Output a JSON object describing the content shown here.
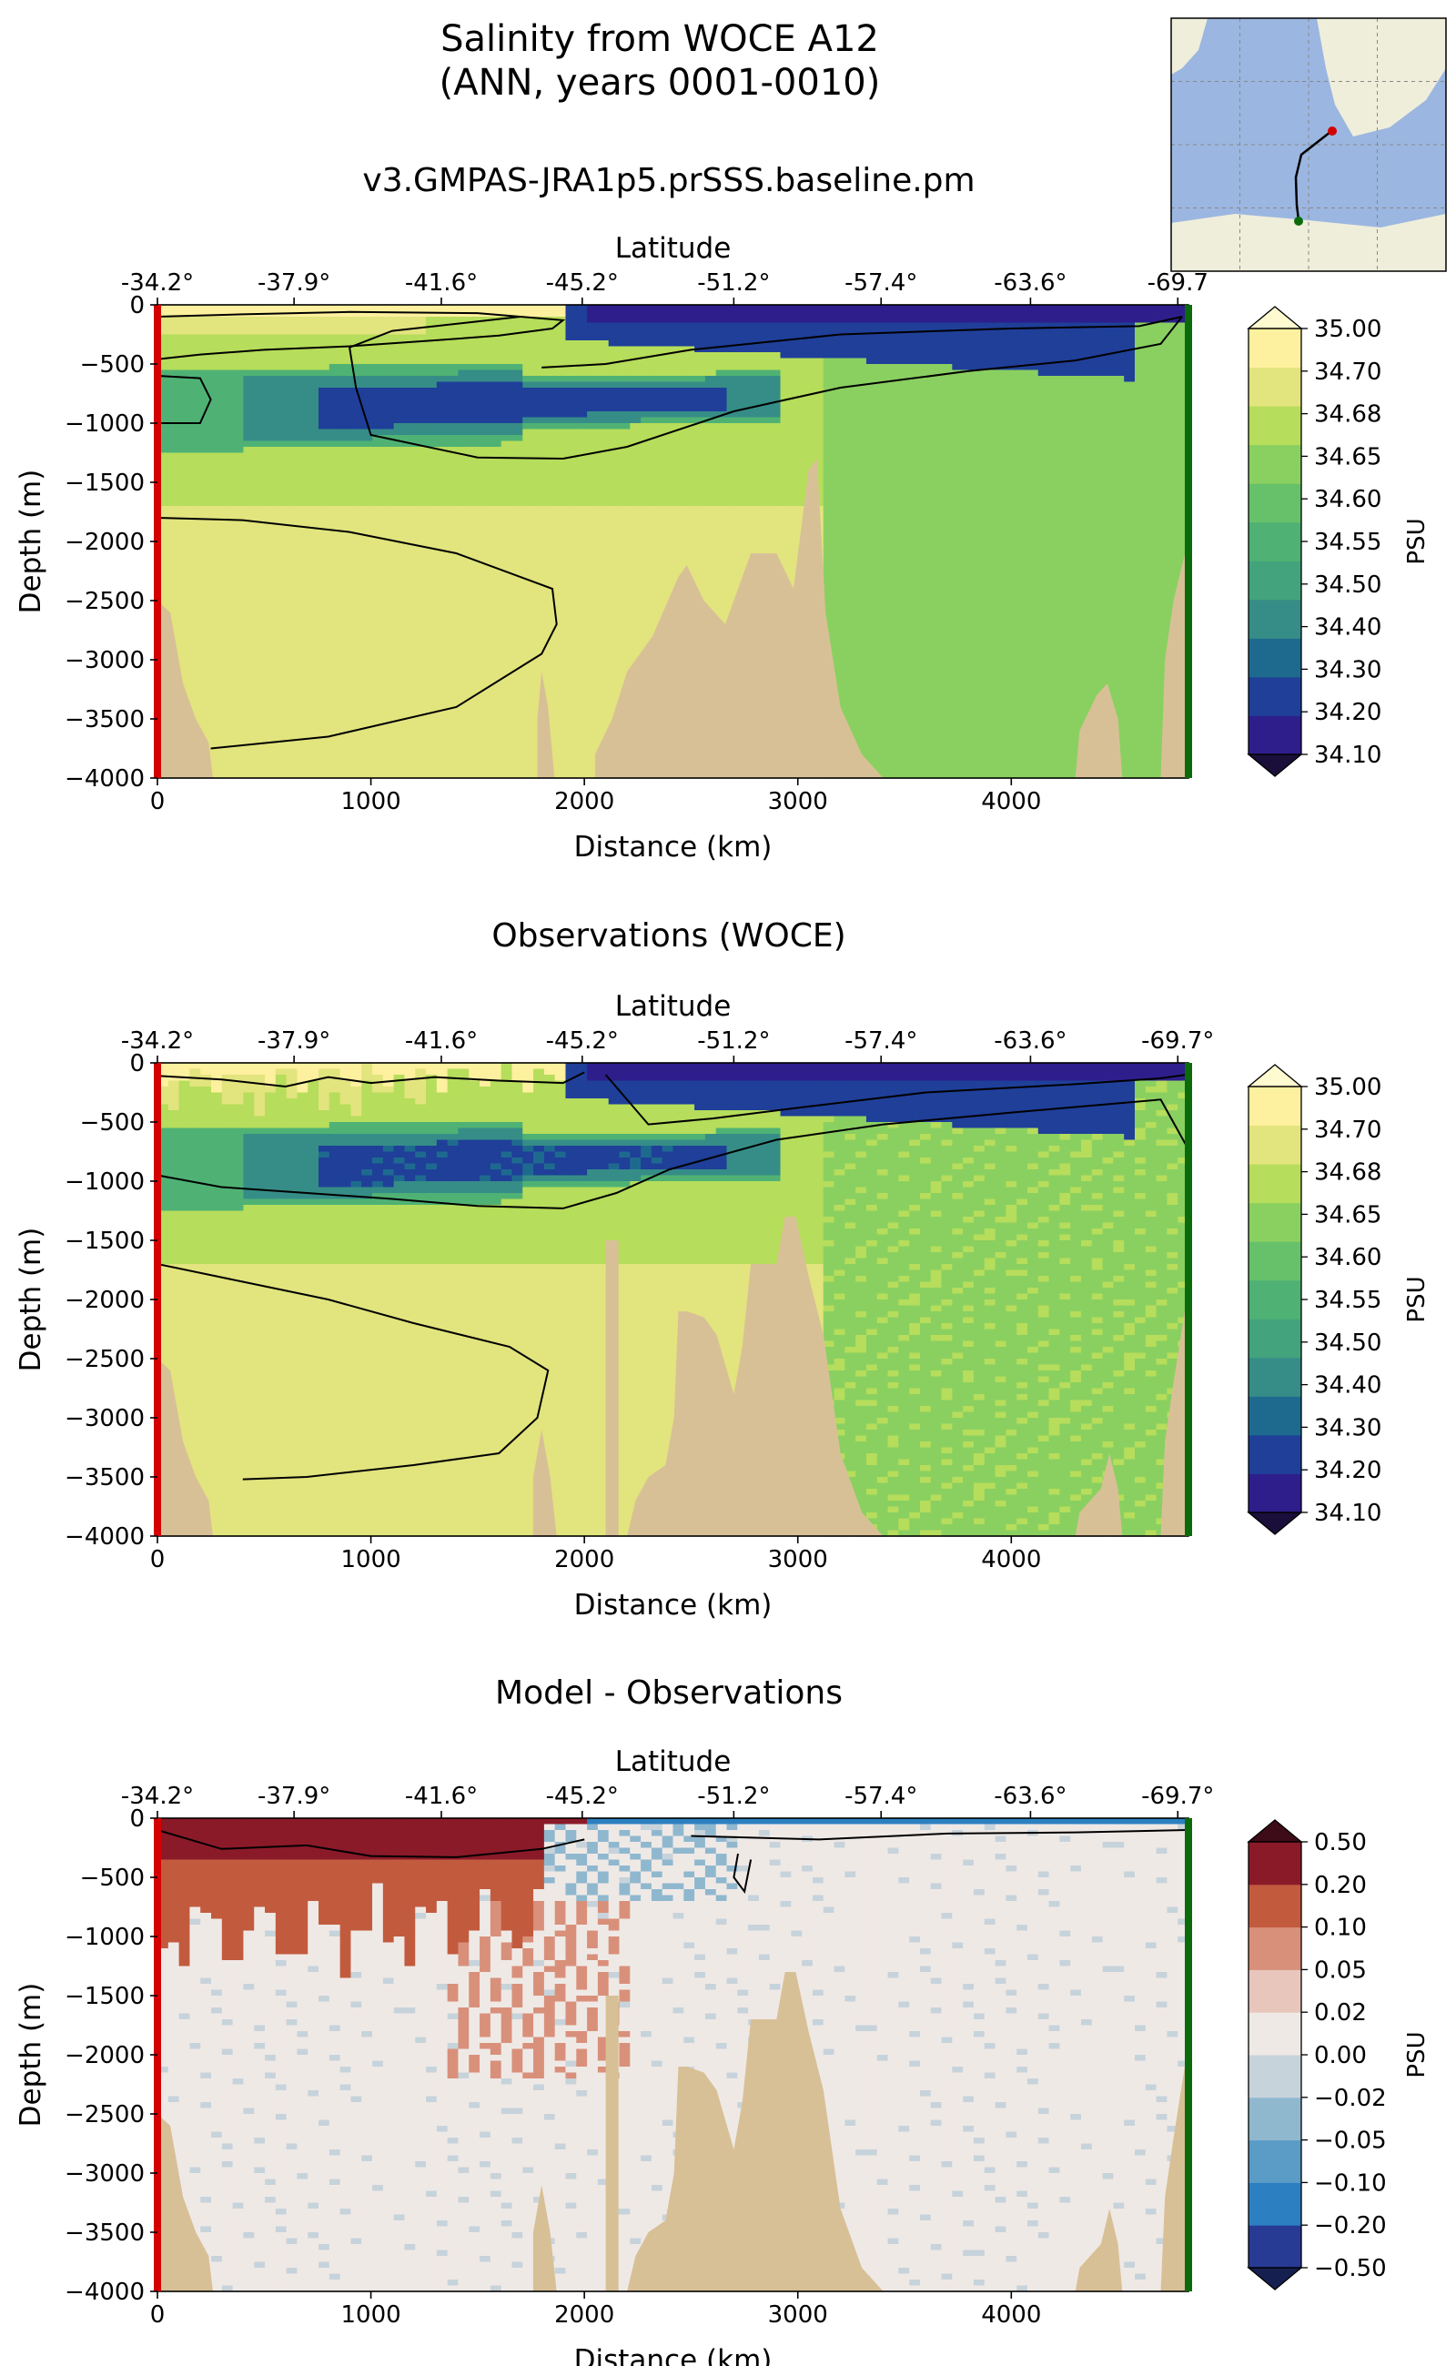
{
  "figure": {
    "title_line1": "Salinity from WOCE A12",
    "title_line2": "(ANN, years 0001-0010)",
    "colors": {
      "land": "#d8c096",
      "start_marker": "#d40000",
      "end_marker": "#0b6b0b",
      "contour": "#000000",
      "map_ocean": "#9bb6e0",
      "map_land": "#efeedb"
    }
  },
  "chart_data": [
    {
      "type": "heatmap",
      "title": "v3.GMPAS-JRA1p5.prSSS.baseline.pm",
      "xlabel": "Distance (km)",
      "ylabel": "Depth (m)",
      "top_xlabel": "Latitude",
      "xlim": [
        0,
        4830
      ],
      "ylim": [
        -4000,
        0
      ],
      "x_ticks": [
        "0",
        "1000",
        "2000",
        "3000",
        "4000"
      ],
      "y_ticks": [
        "0",
        "−500",
        "−1000",
        "−1500",
        "−2000",
        "−2500",
        "−3000",
        "−3500",
        "−4000"
      ],
      "top_ticks": [
        "-34.2°",
        "-37.9°",
        "-41.6°",
        "-45.2°",
        "-51.2°",
        "-57.4°",
        "-63.6°",
        "-69.7"
      ],
      "colorbar": {
        "label": "PSU",
        "extend": "both",
        "levels": [
          "34.10",
          "34.20",
          "34.30",
          "34.40",
          "34.50",
          "34.55",
          "34.60",
          "34.65",
          "34.68",
          "34.70",
          "35.00"
        ],
        "colors": [
          "#2e1e8c",
          "#1f3f99",
          "#1e6a8f",
          "#368d87",
          "#43a37c",
          "#4fb274",
          "#67c16b",
          "#8ad061",
          "#b6dd5b",
          "#e2e47e",
          "#fdf09e"
        ],
        "under_color": "#1a0f3a",
        "over_color": "#fffad0"
      }
    },
    {
      "type": "heatmap",
      "title": "Observations (WOCE)",
      "xlabel": "Distance (km)",
      "ylabel": "Depth (m)",
      "top_xlabel": "Latitude",
      "xlim": [
        0,
        4830
      ],
      "ylim": [
        -4000,
        0
      ],
      "x_ticks": [
        "0",
        "1000",
        "2000",
        "3000",
        "4000"
      ],
      "y_ticks": [
        "0",
        "−500",
        "−1000",
        "−1500",
        "−2000",
        "−2500",
        "−3000",
        "−3500",
        "−4000"
      ],
      "top_ticks": [
        "-34.2°",
        "-37.9°",
        "-41.6°",
        "-45.2°",
        "-51.2°",
        "-57.4°",
        "-63.6°",
        "-69.7°"
      ],
      "colorbar": {
        "label": "PSU",
        "extend": "both",
        "levels": [
          "34.10",
          "34.20",
          "34.30",
          "34.40",
          "34.50",
          "34.55",
          "34.60",
          "34.65",
          "34.68",
          "34.70",
          "35.00"
        ],
        "colors": [
          "#2e1e8c",
          "#1f3f99",
          "#1e6a8f",
          "#368d87",
          "#43a37c",
          "#4fb274",
          "#67c16b",
          "#8ad061",
          "#b6dd5b",
          "#e2e47e",
          "#fdf09e"
        ],
        "under_color": "#1a0f3a",
        "over_color": "#fffad0"
      }
    },
    {
      "type": "heatmap",
      "title": "Model - Observations",
      "xlabel": "Distance (km)",
      "ylabel": "Depth (m)",
      "top_xlabel": "Latitude",
      "xlim": [
        0,
        4830
      ],
      "ylim": [
        -4000,
        0
      ],
      "x_ticks": [
        "0",
        "1000",
        "2000",
        "3000",
        "4000"
      ],
      "y_ticks": [
        "0",
        "−500",
        "−1000",
        "−1500",
        "−2000",
        "−2500",
        "−3000",
        "−3500",
        "−4000"
      ],
      "top_ticks": [
        "-34.2°",
        "-37.9°",
        "-41.6°",
        "-45.2°",
        "-51.2°",
        "-57.4°",
        "-63.6°",
        "-69.7°"
      ],
      "colorbar": {
        "label": "PSU",
        "extend": "both",
        "levels": [
          "−0.50",
          "−0.20",
          "−0.10",
          "−0.05",
          "−0.02",
          "0.00",
          "0.02",
          "0.05",
          "0.10",
          "0.20",
          "0.50"
        ],
        "colors": [
          "#273a94",
          "#2c80c2",
          "#5a9cc6",
          "#8fb8cf",
          "#c7d3db",
          "#efe9e6",
          "#e8c6bc",
          "#d9907a",
          "#c25b3e",
          "#8b1a29"
        ],
        "under_color": "#162050",
        "over_color": "#3d0c18"
      }
    }
  ]
}
